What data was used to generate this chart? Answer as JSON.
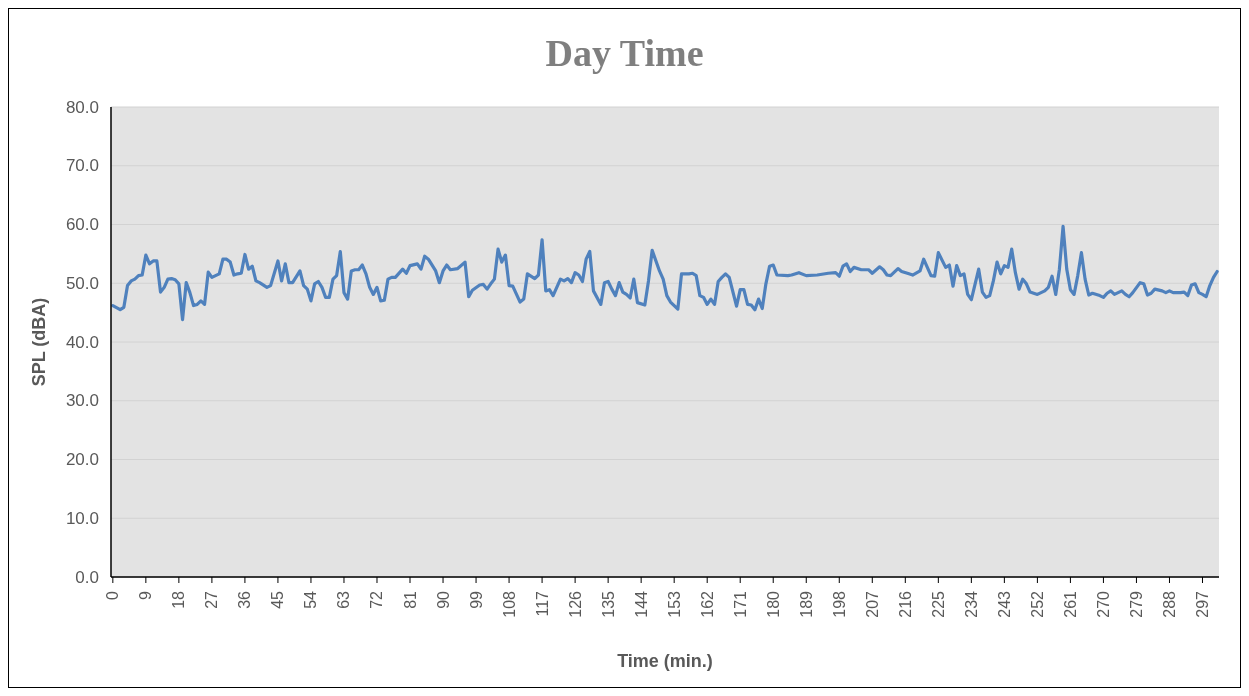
{
  "chart_data": {
    "type": "line",
    "title": "Day Time",
    "xlabel": "Time (min.)",
    "ylabel": "SPL (dBA)",
    "xlim": [
      -0.5,
      301.5
    ],
    "xticks": [
      0,
      9,
      18,
      27,
      36,
      45,
      54,
      63,
      72,
      81,
      90,
      99,
      108,
      117,
      126,
      135,
      144,
      153,
      162,
      171,
      180,
      189,
      198,
      207,
      216,
      225,
      234,
      243,
      252,
      261,
      270,
      279,
      288,
      297
    ],
    "ylim": [
      0,
      80
    ],
    "yticks": [
      {
        "value": 0,
        "label": "0.0"
      },
      {
        "value": 10,
        "label": "10.0"
      },
      {
        "value": 20,
        "label": "20.0"
      },
      {
        "value": 30,
        "label": "30.0"
      },
      {
        "value": 40,
        "label": "40.0"
      },
      {
        "value": 50,
        "label": "50.0"
      },
      {
        "value": 60,
        "label": "60.0"
      },
      {
        "value": 70,
        "label": "70.0"
      },
      {
        "value": 80,
        "label": "80.0"
      }
    ],
    "grid": "y",
    "marker": "none",
    "line_style": "solid",
    "series": [
      {
        "color": "#4f81bd",
        "x": [
          0,
          2,
          3,
          4,
          5,
          6,
          7,
          8,
          9,
          10,
          11,
          12,
          13,
          14,
          15,
          16,
          17,
          18,
          19,
          20,
          21,
          22,
          23,
          24,
          25,
          26,
          27,
          28,
          29,
          30,
          31,
          32,
          33,
          34,
          35,
          36,
          37,
          38,
          39,
          40,
          42,
          43,
          45,
          46,
          47,
          48,
          49,
          51,
          52,
          53,
          54,
          55,
          56,
          57,
          58,
          59,
          60,
          61,
          62,
          63,
          64,
          65,
          66,
          67,
          68,
          69,
          70,
          71,
          72,
          73,
          74,
          75,
          76,
          77,
          79,
          80,
          81,
          83,
          84,
          85,
          86,
          88,
          89,
          90,
          91,
          92,
          94,
          96,
          97,
          98,
          100,
          101,
          102,
          103,
          104,
          105,
          106,
          107,
          108,
          109,
          111,
          112,
          113,
          115,
          116,
          117,
          118,
          119,
          120,
          122,
          123,
          124,
          125,
          126,
          127,
          128,
          129,
          130,
          131,
          133,
          134,
          135,
          136,
          137,
          138,
          139,
          140,
          141,
          142,
          143,
          145,
          146,
          147,
          149,
          150,
          151,
          152,
          154,
          155,
          157,
          158,
          159,
          160,
          161,
          162,
          163,
          164,
          165,
          166,
          167,
          168,
          170,
          171,
          172,
          173,
          174,
          175,
          176,
          177,
          178,
          179,
          180,
          181,
          184,
          185,
          187,
          189,
          192,
          195,
          197,
          198,
          199,
          200,
          201,
          202,
          204,
          206,
          207,
          209,
          210,
          211,
          212,
          214,
          215,
          217,
          218,
          220,
          221,
          223,
          224,
          225,
          227,
          228,
          229,
          230,
          231,
          232,
          233,
          234,
          236,
          237,
          238,
          239,
          240,
          241,
          242,
          243,
          244,
          245,
          246,
          247,
          248,
          249,
          250,
          252,
          254,
          255,
          256,
          257,
          258,
          259,
          260,
          261,
          262,
          263,
          264,
          265,
          266,
          267,
          269,
          270,
          271,
          272,
          273,
          275,
          276,
          277,
          278,
          280,
          281,
          282,
          283,
          284,
          286,
          287,
          288,
          289,
          291,
          292,
          293,
          294,
          295,
          296,
          297,
          298,
          299,
          300,
          301
        ],
        "values": [
          46.2,
          45.5,
          45.9,
          49.6,
          50.4,
          50.7,
          51.3,
          51.4,
          54.8,
          53.3,
          53.8,
          53.8,
          48.5,
          49.3,
          50.7,
          50.8,
          50.6,
          49.9,
          43.8,
          50.1,
          48.4,
          46.2,
          46.4,
          47.0,
          46.4,
          51.9,
          51.0,
          51.3,
          51.6,
          54.1,
          54.1,
          53.6,
          51.4,
          51.6,
          51.7,
          54.9,
          52.4,
          52.9,
          50.4,
          50.1,
          49.3,
          49.6,
          53.8,
          50.4,
          53.3,
          50.1,
          50.1,
          52.1,
          49.6,
          49.0,
          47.0,
          49.9,
          50.3,
          49.3,
          47.6,
          47.6,
          50.7,
          51.3,
          55.4,
          48.4,
          47.3,
          52.1,
          52.3,
          52.3,
          53.1,
          51.6,
          49.3,
          48.1,
          49.3,
          47.0,
          47.1,
          50.7,
          51.0,
          51.0,
          52.4,
          51.7,
          53.0,
          53.3,
          52.4,
          54.6,
          54.1,
          52.1,
          50.1,
          52.1,
          53.1,
          52.3,
          52.5,
          53.6,
          47.7,
          48.8,
          49.7,
          49.8,
          49.0,
          49.9,
          50.7,
          55.8,
          53.6,
          54.8,
          49.6,
          49.5,
          46.8,
          47.3,
          51.6,
          50.8,
          51.4,
          57.4,
          48.7,
          48.9,
          47.9,
          50.7,
          50.4,
          50.8,
          50.1,
          51.8,
          51.4,
          50.3,
          54.1,
          55.4,
          48.7,
          46.4,
          50.1,
          50.3,
          49.0,
          47.9,
          50.1,
          48.5,
          48.1,
          47.5,
          50.7,
          46.7,
          46.3,
          50.4,
          55.6,
          52.1,
          50.7,
          47.9,
          46.8,
          45.6,
          51.6,
          51.6,
          51.7,
          51.3,
          47.9,
          47.6,
          46.4,
          47.3,
          46.4,
          50.3,
          51.0,
          51.6,
          51.0,
          46.1,
          48.9,
          48.9,
          46.4,
          46.3,
          45.5,
          47.3,
          45.7,
          49.9,
          52.9,
          53.1,
          51.4,
          51.3,
          51.4,
          51.8,
          51.3,
          51.4,
          51.7,
          51.8,
          51.2,
          52.9,
          53.3,
          52.0,
          52.7,
          52.3,
          52.3,
          51.7,
          52.8,
          52.3,
          51.4,
          51.3,
          52.5,
          52.0,
          51.6,
          51.4,
          52.1,
          54.1,
          51.3,
          51.2,
          55.2,
          52.7,
          53.1,
          49.5,
          53.0,
          51.3,
          51.6,
          48.1,
          47.2,
          52.4,
          48.5,
          47.6,
          47.9,
          50.4,
          53.6,
          51.6,
          53.0,
          52.7,
          55.8,
          51.8,
          49.0,
          50.7,
          49.9,
          48.5,
          48.1,
          48.7,
          49.3,
          51.2,
          48.1,
          52.4,
          59.7,
          52.4,
          48.9,
          48.1,
          51.3,
          55.2,
          50.7,
          48.0,
          48.3,
          47.9,
          47.6,
          48.3,
          48.7,
          48.1,
          48.7,
          48.1,
          47.7,
          48.4,
          50.1,
          49.9,
          48.0,
          48.3,
          49.0,
          48.7,
          48.4,
          48.7,
          48.4,
          48.4,
          48.5,
          47.9,
          49.7,
          49.9,
          48.4,
          48.1,
          47.7,
          49.6,
          51.0,
          52.0
        ]
      }
    ]
  }
}
